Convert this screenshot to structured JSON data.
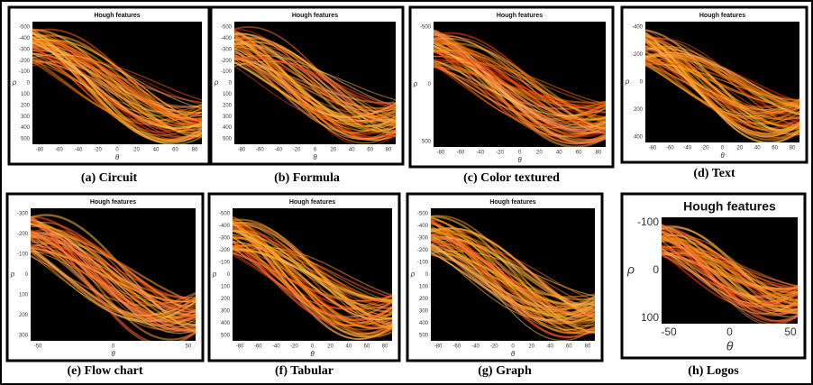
{
  "panels": [
    {
      "title": "Hough features",
      "caption": "(a) Circuit",
      "ylabel": "ρ",
      "xlabel": "θ",
      "yticks": [
        "-500",
        "-400",
        "-300",
        "-200",
        "-100",
        "0",
        "100",
        "200",
        "300",
        "400",
        "500"
      ],
      "xticks": [
        "-80",
        "-60",
        "-40",
        "-20",
        "0",
        "20",
        "40",
        "60",
        "80"
      ]
    },
    {
      "title": "Hough features",
      "caption": "(b) Formula",
      "ylabel": "ρ",
      "xlabel": "θ",
      "yticks": [
        "-500",
        "-400",
        "-300",
        "-200",
        "-100",
        "0",
        "100",
        "200",
        "300",
        "400",
        "500"
      ],
      "xticks": [
        "-80",
        "-60",
        "-40",
        "-20",
        "0",
        "20",
        "40",
        "60",
        "80"
      ]
    },
    {
      "title": "Hough features",
      "caption": "(c) Color textured",
      "ylabel": "ρ",
      "xlabel": "θ",
      "yticks": [
        "-500",
        "0",
        "500"
      ],
      "xticks": [
        "-80",
        "-60",
        "-40",
        "-20",
        "0",
        "20",
        "40",
        "60",
        "80"
      ]
    },
    {
      "title": "Hough features",
      "caption": "(d) Text",
      "ylabel": "ρ",
      "xlabel": "θ",
      "yticks": [
        "-400",
        "-200",
        "0",
        "200",
        "400"
      ],
      "xticks": [
        "-80",
        "-60",
        "-40",
        "-20",
        "0",
        "20",
        "40",
        "60",
        "80"
      ]
    },
    {
      "title": "Hough features",
      "caption": "(e) Flow chart",
      "ylabel": "ρ",
      "xlabel": "θ",
      "yticks": [
        "-300",
        "-200",
        "-100",
        "0",
        "100",
        "200",
        "300"
      ],
      "xticks": [
        "-50",
        "0",
        "50"
      ]
    },
    {
      "title": "Hough features",
      "caption": "(f) Tabular",
      "ylabel": "ρ",
      "xlabel": "θ",
      "yticks": [
        "-500",
        "-400",
        "-300",
        "-200",
        "-100",
        "0",
        "100",
        "200",
        "300",
        "400",
        "500"
      ],
      "xticks": [
        "-80",
        "-60",
        "-40",
        "-20",
        "0",
        "20",
        "40",
        "60",
        "80"
      ]
    },
    {
      "title": "Hough features",
      "caption": "(g) Graph",
      "ylabel": "ρ",
      "xlabel": "θ",
      "yticks": [
        "-500",
        "-400",
        "-300",
        "-200",
        "-100",
        "0",
        "100",
        "200",
        "300",
        "400",
        "500"
      ],
      "xticks": [
        "-80",
        "-60",
        "-40",
        "-20",
        "0",
        "20",
        "40",
        "60",
        "80"
      ]
    },
    {
      "title": "Hough features",
      "caption": "(h) Logos",
      "ylabel": "ρ",
      "xlabel": "θ",
      "yticks": [
        "-100",
        "0",
        "100"
      ],
      "xticks": [
        "-50",
        "0",
        "50"
      ]
    }
  ]
}
